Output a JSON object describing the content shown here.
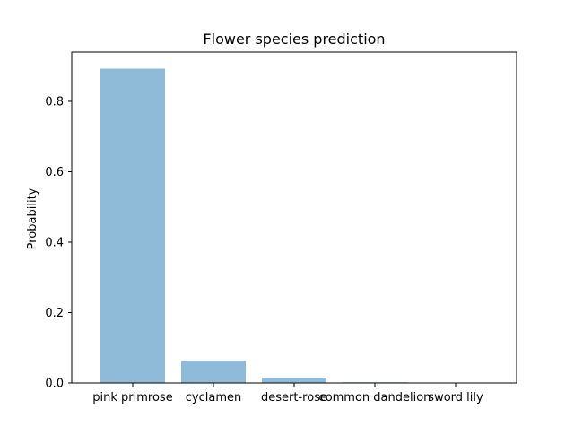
{
  "chart_data": {
    "type": "bar",
    "title": "Flower species prediction",
    "xlabel": "",
    "ylabel": "Probability",
    "categories": [
      "pink primrose",
      "cyclamen",
      "desert-rose",
      "common dandelion",
      "sword lily"
    ],
    "values": [
      0.893,
      0.063,
      0.015,
      0.002,
      0.001
    ],
    "ylim": [
      0,
      0.94
    ],
    "yticks": [
      0.0,
      0.2,
      0.4,
      0.6,
      0.8
    ],
    "ytick_labels": [
      "0.0",
      "0.2",
      "0.4",
      "0.6",
      "0.8"
    ],
    "grid": false,
    "bar_color": "#8fbbd9"
  }
}
